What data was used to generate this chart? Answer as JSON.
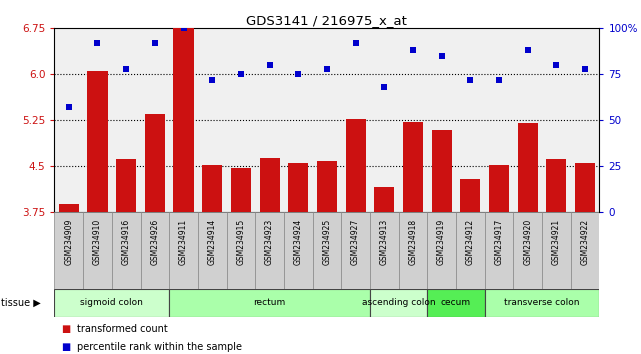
{
  "title": "GDS3141 / 216975_x_at",
  "samples": [
    "GSM234909",
    "GSM234910",
    "GSM234916",
    "GSM234926",
    "GSM234911",
    "GSM234914",
    "GSM234915",
    "GSM234923",
    "GSM234924",
    "GSM234925",
    "GSM234927",
    "GSM234913",
    "GSM234918",
    "GSM234919",
    "GSM234912",
    "GSM234917",
    "GSM234920",
    "GSM234921",
    "GSM234922"
  ],
  "bar_values": [
    3.88,
    6.05,
    4.62,
    5.35,
    6.75,
    4.53,
    4.47,
    4.63,
    4.55,
    4.58,
    5.28,
    4.17,
    5.22,
    5.1,
    4.3,
    4.53,
    5.2,
    4.62,
    4.55
  ],
  "dot_values": [
    57,
    92,
    78,
    92,
    100,
    72,
    75,
    80,
    75,
    78,
    92,
    68,
    88,
    85,
    72,
    72,
    88,
    80,
    78
  ],
  "ylim_left": [
    3.75,
    6.75
  ],
  "ylim_right": [
    0,
    100
  ],
  "yticks_left": [
    3.75,
    4.5,
    5.25,
    6.0,
    6.75
  ],
  "yticks_right": [
    0,
    25,
    50,
    75,
    100
  ],
  "hlines": [
    4.5,
    5.25,
    6.0
  ],
  "bar_color": "#cc1111",
  "dot_color": "#0000cc",
  "tissue_groups": [
    {
      "label": "sigmoid colon",
      "start": 0,
      "end": 3,
      "color": "#ccffcc"
    },
    {
      "label": "rectum",
      "start": 4,
      "end": 10,
      "color": "#aaffaa"
    },
    {
      "label": "ascending colon",
      "start": 11,
      "end": 12,
      "color": "#ccffcc"
    },
    {
      "label": "cecum",
      "start": 13,
      "end": 14,
      "color": "#55ee55"
    },
    {
      "label": "transverse colon",
      "start": 15,
      "end": 18,
      "color": "#aaffaa"
    }
  ],
  "legend_bar_label": "transformed count",
  "legend_dot_label": "percentile rank within the sample",
  "ylabel_left_color": "#cc1111",
  "ylabel_right_color": "#0000cc",
  "bar_bottom": 3.75
}
